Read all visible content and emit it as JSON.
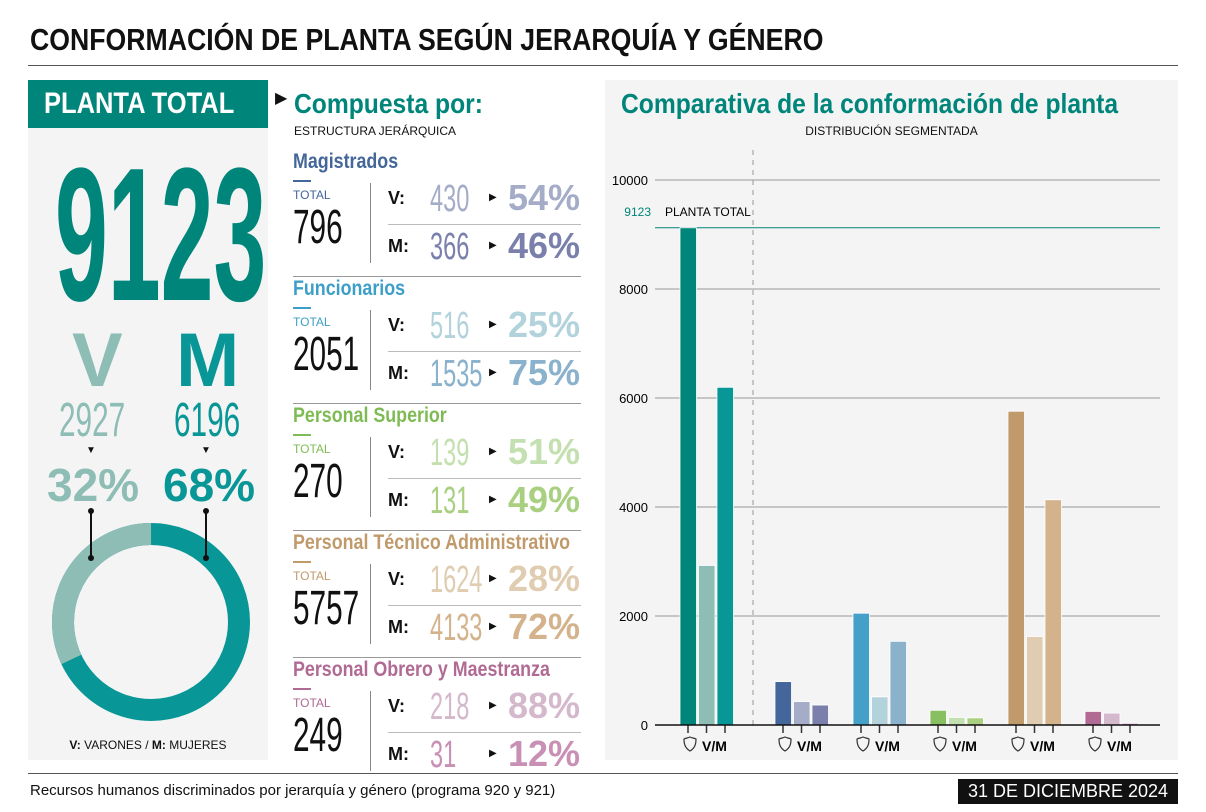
{
  "title": "CONFORMACIÓN DE PLANTA SEGÚN JERARQUÍA Y GÉNERO",
  "left": {
    "banner": "PLANTA TOTAL",
    "total": "9123",
    "v_label": "V",
    "m_label": "M",
    "v_num": "2927",
    "m_num": "6196",
    "v_pct": "32%",
    "m_pct": "68%",
    "v_frac": 0.32,
    "legend_v": "V:",
    "legend_v_text": " VARONES / ",
    "legend_m": "M:",
    "legend_m_text": " MUJERES",
    "v_color": "#8dbdb5",
    "m_color": "#089696"
  },
  "composition": {
    "title": "Compuesta por:",
    "subtitle": "ESTRUCTURA JERÁRQUICA",
    "total_label": "TOTAL",
    "v_key": "V:",
    "m_key": "M:",
    "categories": [
      {
        "name": "Magistrados",
        "total": "796",
        "v": "430",
        "v_pct": "54%",
        "m": "366",
        "m_pct": "46%",
        "color": "#44669a",
        "vcolor": "#a4acc8",
        "mcolor": "#7a80ab"
      },
      {
        "name": "Funcionarios",
        "total": "2051",
        "v": "516",
        "v_pct": "25%",
        "m": "1535",
        "m_pct": "75%",
        "color": "#3d9fc7",
        "vcolor": "#b2d2dc",
        "mcolor": "#8ab2cc"
      },
      {
        "name": "Personal Superior",
        "total": "270",
        "v": "139",
        "v_pct": "51%",
        "m": "131",
        "m_pct": "49%",
        "color": "#7fbb55",
        "vcolor": "#c4e0b0",
        "mcolor": "#a8d080"
      },
      {
        "name": "Personal Técnico Administrativo",
        "total": "5757",
        "v": "1624",
        "v_pct": "28%",
        "m": "4133",
        "m_pct": "72%",
        "color": "#c09a6b",
        "vcolor": "#e0ccb0",
        "mcolor": "#d4b28c"
      },
      {
        "name": "Personal Obrero y Maestranza",
        "total": "249",
        "v": "218",
        "v_pct": "88%",
        "m": "31",
        "m_pct": "12%",
        "color": "#b06a94",
        "vcolor": "#d4b8cc",
        "mcolor": "#c890b4"
      }
    ]
  },
  "chart_data": {
    "type": "bar",
    "title": "Comparativa de la conformación de planta",
    "subtitle": "DISTRIBUCIÓN SEGMENTADA",
    "ylim": [
      0,
      10000
    ],
    "yticks": [
      "0",
      "2000",
      "4000",
      "6000",
      "8000",
      "10000"
    ],
    "reference": {
      "value": 9123,
      "value_label": "9123",
      "label": "PLANTA TOTAL"
    },
    "group_label": "V/M",
    "categories": [
      "Planta total",
      "Magistrados",
      "Funcionarios",
      "Personal Superior",
      "Personal Técnico Administrativo",
      "Personal Obrero y Maestranza"
    ],
    "series": [
      {
        "name": "Total",
        "values": [
          9123,
          796,
          2051,
          270,
          5757,
          249
        ]
      },
      {
        "name": "Varones",
        "values": [
          2927,
          430,
          516,
          139,
          1624,
          218
        ]
      },
      {
        "name": "Mujeres",
        "values": [
          6196,
          366,
          1535,
          131,
          4133,
          31
        ]
      }
    ],
    "colors": [
      [
        "#00857a",
        "#8dbdb5",
        "#089696"
      ],
      [
        "#44669a",
        "#a4acc8",
        "#7a80ab"
      ],
      [
        "#44a0c8",
        "#b2d2dc",
        "#8ab2cc"
      ],
      [
        "#88bf60",
        "#c4e0b0",
        "#a8d080"
      ],
      [
        "#c09a6b",
        "#e0ccb0",
        "#d4b28c"
      ],
      [
        "#b06a94",
        "#d4b8cc",
        "#c890b4"
      ]
    ]
  },
  "footer": {
    "note": "Recursos humanos discriminados por jerarquía y género (programa 920 y 921)",
    "date": "31 DE DICIEMBRE 2024"
  }
}
